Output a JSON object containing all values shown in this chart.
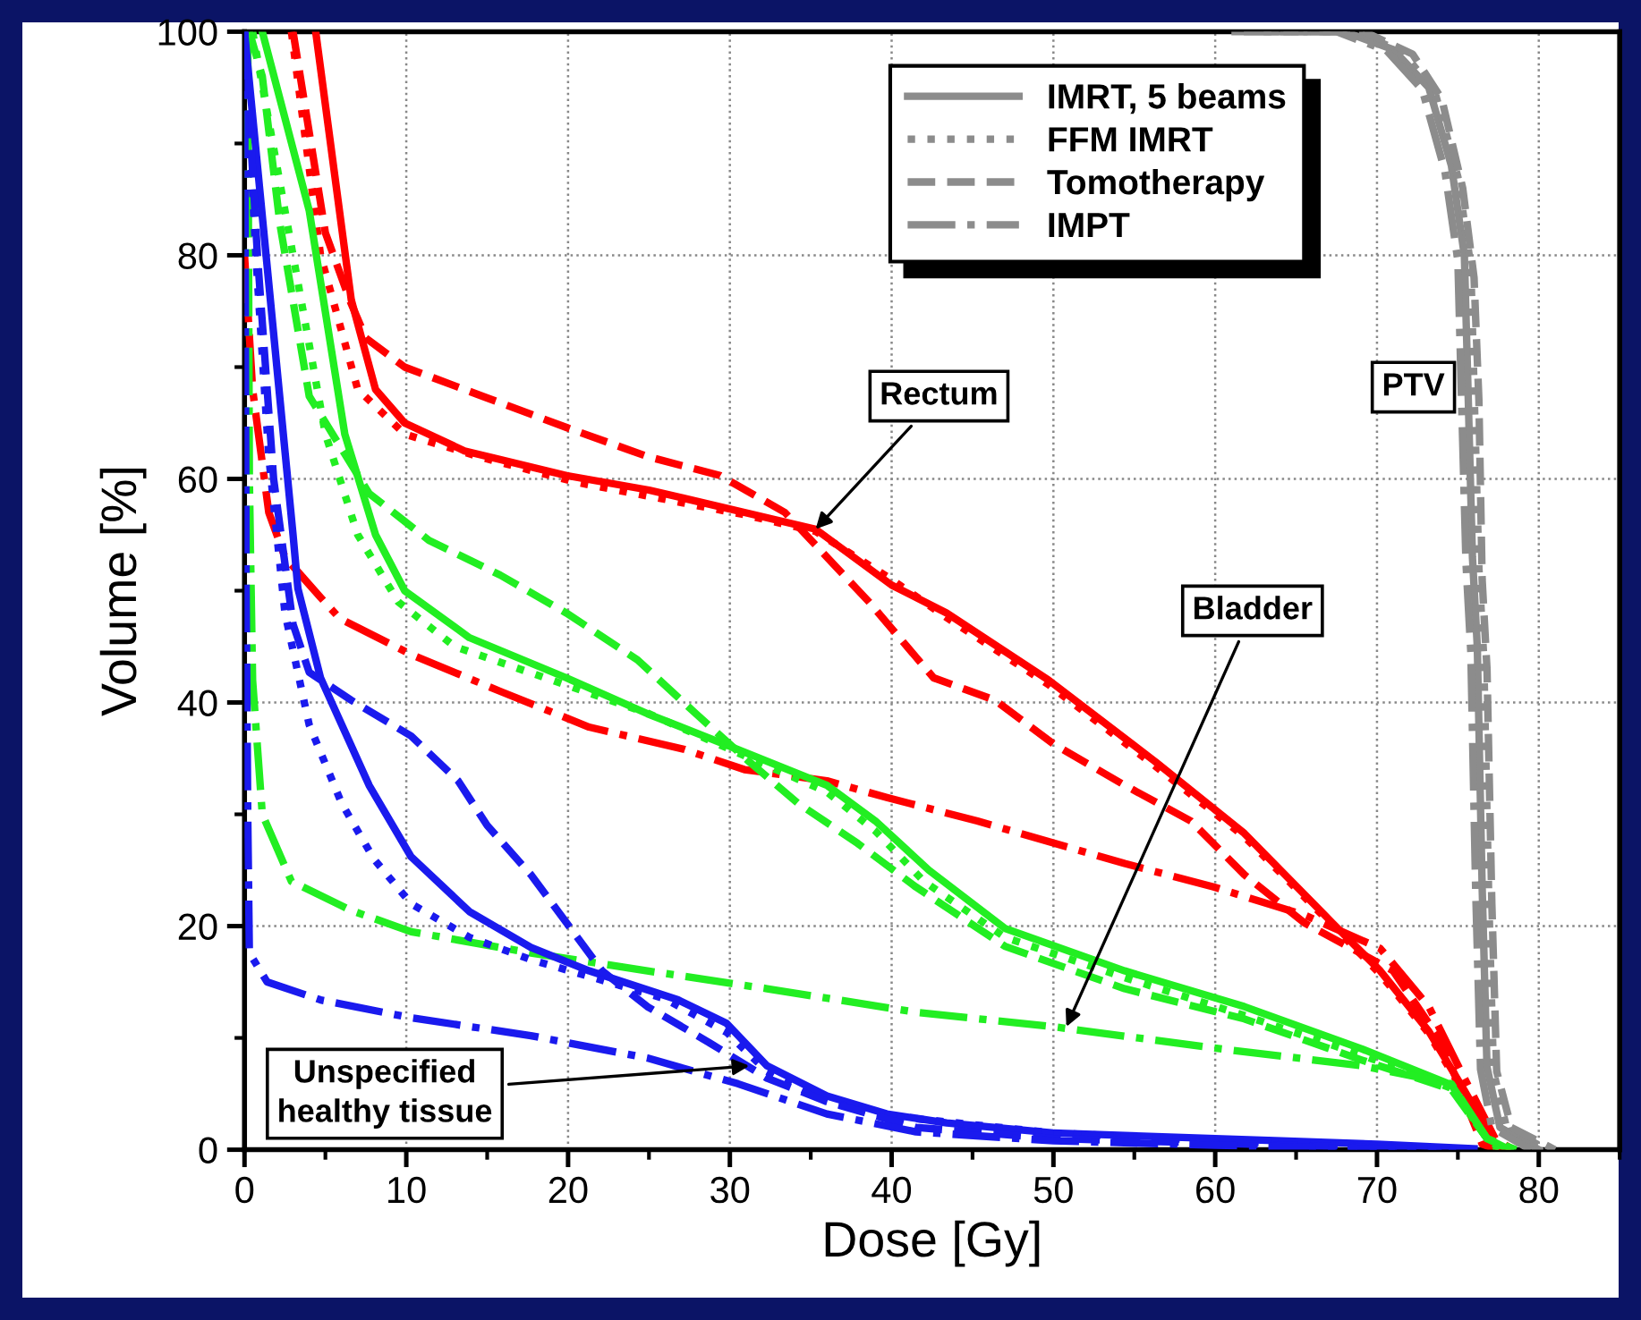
{
  "chart_data": {
    "type": "line",
    "xlabel": "Dose [Gy]",
    "ylabel": "Volume [%]",
    "xlim": [
      0,
      85
    ],
    "ylim": [
      0,
      100
    ],
    "xticks": [
      0,
      10,
      20,
      30,
      40,
      50,
      60,
      70,
      80
    ],
    "yticks": [
      0,
      20,
      40,
      60,
      80,
      100
    ],
    "grid": true,
    "legend": "top",
    "marker": "none",
    "series": [
      {
        "color": "#ff0000",
        "line_style": "solid",
        "x": [
          4.4,
          6.6,
          8.1,
          9.9,
          13.6,
          19.9,
          25,
          30.9,
          35.3,
          40,
          43.4,
          49.7,
          56.3,
          61.8,
          67.3,
          70.2,
          73.2,
          75.4,
          77.3,
          78
        ],
        "values": [
          100,
          76,
          68,
          65,
          62.5,
          60.3,
          59,
          57,
          55.5,
          50.5,
          48,
          42,
          34.7,
          28.3,
          20.2,
          16,
          10.6,
          5.3,
          0.5,
          0
        ]
      },
      {
        "color": "#ff0000",
        "line_style": "dotted",
        "x": [
          2.9,
          4.7,
          7,
          9.9,
          14.7,
          20.5,
          30.9,
          35.3,
          40,
          43.4,
          49.7,
          56.3,
          61.8,
          67.3,
          70.2,
          73.2,
          75.4,
          77.3,
          77.8
        ],
        "values": [
          100,
          80,
          68,
          64,
          61.9,
          59.7,
          56.8,
          55.3,
          51,
          47.6,
          41.6,
          34.3,
          28,
          20,
          15.7,
          10.4,
          5,
          0.4,
          0
        ]
      },
      {
        "color": "#ff0000",
        "line_style": "dashed",
        "x": [
          3,
          5,
          6.5,
          7.5,
          9.9,
          14.7,
          19.9,
          24.9,
          29.4,
          33.4,
          38.6,
          42.6,
          46.4,
          50,
          54.4,
          58.5,
          61.8,
          65.5,
          71,
          74,
          76.5,
          77.5
        ],
        "values": [
          100,
          82,
          76,
          72.6,
          70,
          67.4,
          64.6,
          62,
          60.3,
          57,
          49,
          42.2,
          40.2,
          36.3,
          32.6,
          29.4,
          24.6,
          20.3,
          16,
          9.6,
          0.5,
          0
        ]
      },
      {
        "color": "#ff0000",
        "line_style": "dashdot",
        "x": [
          0,
          0.5,
          1.5,
          2.5,
          4.7,
          5.9,
          10.3,
          15.8,
          21.3,
          27.2,
          30.9,
          36,
          39.7,
          45.3,
          54.4,
          59.9,
          65.5,
          70.2,
          73.2,
          75.4,
          77.3,
          78.4
        ],
        "values": [
          80,
          68,
          57,
          53,
          49.4,
          47.5,
          44.3,
          41,
          37.8,
          35.8,
          34,
          33,
          31.5,
          29.4,
          25.6,
          23.5,
          21,
          18,
          12.8,
          6.4,
          1,
          0
        ]
      },
      {
        "color": "#22ee22",
        "line_style": "solid",
        "x": [
          1.1,
          4,
          6.2,
          8.1,
          9.9,
          13.9,
          19.9,
          24.9,
          30.5,
          36,
          39,
          42.3,
          47,
          54.4,
          61.8,
          69.1,
          74.6,
          76.8,
          78.2
        ],
        "values": [
          100,
          84,
          64,
          55,
          50,
          45.8,
          42.2,
          39,
          35.8,
          32.6,
          29.4,
          25,
          19.8,
          16,
          12.8,
          9,
          5.8,
          1,
          0
        ]
      },
      {
        "color": "#22ee22",
        "line_style": "dotted",
        "x": [
          0.5,
          2.5,
          5,
          7,
          9.5,
          13,
          20,
          25,
          30.5,
          36,
          39,
          42,
          47,
          54.4,
          61.8,
          69,
          74.6,
          76.8,
          77.7
        ],
        "values": [
          100,
          84,
          64,
          55,
          49,
          45,
          41.5,
          39,
          35.5,
          32,
          28.5,
          24,
          19,
          15.4,
          12,
          8.5,
          5.5,
          1,
          0
        ]
      },
      {
        "color": "#22ee22",
        "line_style": "dashed",
        "x": [
          0.3,
          1.1,
          2.2,
          4,
          7.7,
          11.4,
          15.8,
          19.9,
          24.3,
          27.9,
          31.2,
          34.2,
          37.9,
          41.5,
          47,
          54.4,
          61.8,
          69.1,
          74.6,
          76.8,
          78.6
        ],
        "values": [
          100,
          96,
          82.7,
          67.4,
          58.7,
          54.5,
          51.4,
          48,
          43.8,
          39,
          34.7,
          31,
          27.4,
          23.5,
          18.2,
          14.4,
          11.7,
          8,
          5.4,
          1,
          0
        ]
      },
      {
        "color": "#22ee22",
        "line_style": "dashdot",
        "x": [
          0.2,
          0.3,
          0.5,
          1.1,
          2.9,
          6.6,
          10.3,
          17.7,
          24.9,
          32.3,
          41.5,
          50,
          59.9,
          69.1,
          74.6,
          76.8,
          77.5
        ],
        "values": [
          100,
          60,
          42,
          30,
          24,
          21.4,
          19.5,
          17.6,
          16,
          14.4,
          12.3,
          11,
          9.1,
          7.5,
          5.9,
          1,
          0
        ]
      },
      {
        "color": "#1a1aee",
        "line_style": "solid",
        "x": [
          0,
          1,
          2,
          3,
          3.3,
          4.7,
          7.7,
          10.3,
          13.9,
          17.7,
          21.3,
          26.8,
          29.8,
          32.3,
          36,
          39.7,
          43.4,
          50,
          60,
          70,
          76
        ],
        "values": [
          100,
          85,
          70,
          55,
          50.2,
          42.2,
          32.6,
          26.2,
          21.3,
          18.1,
          16,
          13.4,
          11.3,
          7.5,
          4.8,
          3.2,
          2.4,
          1.5,
          1,
          0.5,
          0.1
        ]
      },
      {
        "color": "#1a1aee",
        "line_style": "dotted",
        "x": [
          0,
          0.7,
          1.5,
          2.5,
          4,
          6,
          8,
          10.3,
          13.9,
          17.7,
          21.3,
          26,
          29.8,
          32.3,
          36,
          40,
          50,
          60,
          75
        ],
        "values": [
          100,
          80,
          62,
          48,
          38,
          31,
          26,
          22,
          19,
          17,
          15.5,
          13.5,
          10.5,
          7,
          4.3,
          3,
          1.5,
          0.8,
          0
        ]
      },
      {
        "color": "#1a1aee",
        "line_style": "dashed",
        "x": [
          0,
          0.8,
          1.8,
          3,
          4,
          6.6,
          10.3,
          13.2,
          15,
          17.7,
          19.9,
          22.1,
          24.9,
          28.7,
          32.3,
          36,
          41.5,
          50,
          74
        ],
        "values": [
          100,
          80,
          60,
          47,
          42.7,
          40.2,
          37,
          33,
          29,
          24.6,
          20.3,
          16,
          12.8,
          9.6,
          6.4,
          4.3,
          2,
          1,
          0
        ]
      },
      {
        "color": "#1a1aee",
        "line_style": "dashdot",
        "x": [
          0,
          0.1,
          0.2,
          0.3,
          1.4,
          4.7,
          10.3,
          17.7,
          24.9,
          30.5,
          36,
          41.5,
          50,
          60,
          72
        ],
        "values": [
          100,
          50,
          30,
          17.6,
          15,
          13.4,
          11.8,
          10.2,
          8.2,
          5.9,
          3.2,
          1.6,
          0.8,
          0.4,
          0
        ]
      },
      {
        "name": "IMRT, 5 beams",
        "color": "#8c8c8c",
        "line_style": "solid",
        "x": [
          62,
          68,
          71,
          73.2,
          74.6,
          75.4,
          75.6,
          75.9,
          76.2,
          76.5,
          76.8,
          77.6,
          80
        ],
        "values": [
          100,
          100,
          98.4,
          95,
          88,
          80,
          69.4,
          53,
          45,
          23.5,
          7.4,
          2,
          0
        ]
      },
      {
        "name": "FFM IMRT",
        "color": "#8c8c8c",
        "line_style": "dotted",
        "x": [
          63,
          68.6,
          71.6,
          73.6,
          75,
          75.8,
          76,
          76.3,
          76.6,
          76.9,
          77.2,
          78,
          80.5
        ],
        "values": [
          100,
          100,
          98.2,
          94.5,
          87,
          79,
          68,
          52,
          44,
          23,
          7,
          2,
          0
        ]
      },
      {
        "name": "Tomotherapy",
        "color": "#8c8c8c",
        "line_style": "dashed",
        "x": [
          64,
          69.2,
          72.2,
          74,
          75.3,
          76,
          76.3,
          76.5,
          76.8,
          77.1,
          77.4,
          78.3,
          81
        ],
        "values": [
          100,
          100,
          98,
          94,
          86,
          78,
          67,
          51,
          43,
          22,
          7,
          2,
          0
        ]
      },
      {
        "name": "IMPT",
        "color": "#8c8c8c",
        "line_style": "dashdot",
        "x": [
          61,
          67.5,
          70.6,
          72.8,
          74.2,
          75,
          75.2,
          75.5,
          75.8,
          76.1,
          76.4,
          77.1,
          79.5
        ],
        "values": [
          100,
          100,
          98.3,
          94.8,
          87.5,
          79.5,
          68.5,
          52.5,
          44.5,
          23.2,
          7.2,
          2,
          0
        ]
      }
    ],
    "annotations": [
      {
        "text": "Rectum",
        "x": 35.3,
        "y": 55.5
      },
      {
        "text": "Bladder",
        "x": 50.8,
        "y": 11
      },
      "PTV",
      {
        "text": "Unspecified\nhealthy tissue",
        "x": 31.2,
        "y": 7.5
      }
    ]
  }
}
